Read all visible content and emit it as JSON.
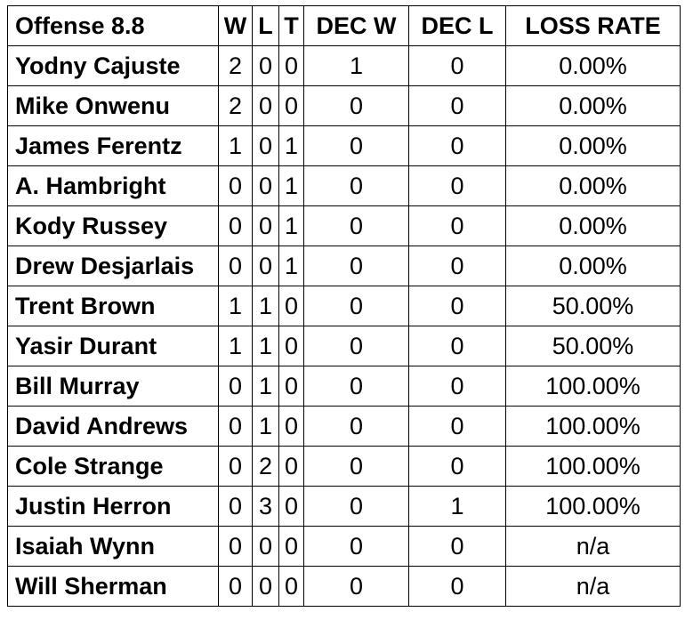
{
  "header": {
    "title": "Offense 8.8",
    "w": "W",
    "l": "L",
    "t": "T",
    "dec_w": "DEC W",
    "dec_l": "DEC L",
    "loss_rate": "LOSS RATE"
  },
  "rows": [
    {
      "name": "Yodny Cajuste",
      "w": "2",
      "l": "0",
      "t": "0",
      "dec_w": "1",
      "dec_l": "0",
      "loss_rate": "0.00%"
    },
    {
      "name": "Mike Onwenu",
      "w": "2",
      "l": "0",
      "t": "0",
      "dec_w": "0",
      "dec_l": "0",
      "loss_rate": "0.00%"
    },
    {
      "name": "James Ferentz",
      "w": "1",
      "l": "0",
      "t": "1",
      "dec_w": "0",
      "dec_l": "0",
      "loss_rate": "0.00%"
    },
    {
      "name": "A. Hambright",
      "w": "0",
      "l": "0",
      "t": "1",
      "dec_w": "0",
      "dec_l": "0",
      "loss_rate": "0.00%"
    },
    {
      "name": "Kody Russey",
      "w": "0",
      "l": "0",
      "t": "1",
      "dec_w": "0",
      "dec_l": "0",
      "loss_rate": "0.00%"
    },
    {
      "name": "Drew Desjarlais",
      "w": "0",
      "l": "0",
      "t": "1",
      "dec_w": "0",
      "dec_l": "0",
      "loss_rate": "0.00%"
    },
    {
      "name": "Trent Brown",
      "w": "1",
      "l": "1",
      "t": "0",
      "dec_w": "0",
      "dec_l": "0",
      "loss_rate": "50.00%"
    },
    {
      "name": "Yasir Durant",
      "w": "1",
      "l": "1",
      "t": "0",
      "dec_w": "0",
      "dec_l": "0",
      "loss_rate": "50.00%"
    },
    {
      "name": "Bill Murray",
      "w": "0",
      "l": "1",
      "t": "0",
      "dec_w": "0",
      "dec_l": "0",
      "loss_rate": "100.00%"
    },
    {
      "name": "David Andrews",
      "w": "0",
      "l": "1",
      "t": "0",
      "dec_w": "0",
      "dec_l": "0",
      "loss_rate": "100.00%"
    },
    {
      "name": "Cole Strange",
      "w": "0",
      "l": "2",
      "t": "0",
      "dec_w": "0",
      "dec_l": "0",
      "loss_rate": "100.00%"
    },
    {
      "name": "Justin Herron",
      "w": "0",
      "l": "3",
      "t": "0",
      "dec_w": "0",
      "dec_l": "1",
      "loss_rate": "100.00%"
    },
    {
      "name": "Isaiah Wynn",
      "w": "0",
      "l": "0",
      "t": "0",
      "dec_w": "0",
      "dec_l": "0",
      "loss_rate": "n/a"
    },
    {
      "name": "Will Sherman",
      "w": "0",
      "l": "0",
      "t": "0",
      "dec_w": "0",
      "dec_l": "0",
      "loss_rate": "n/a"
    }
  ]
}
